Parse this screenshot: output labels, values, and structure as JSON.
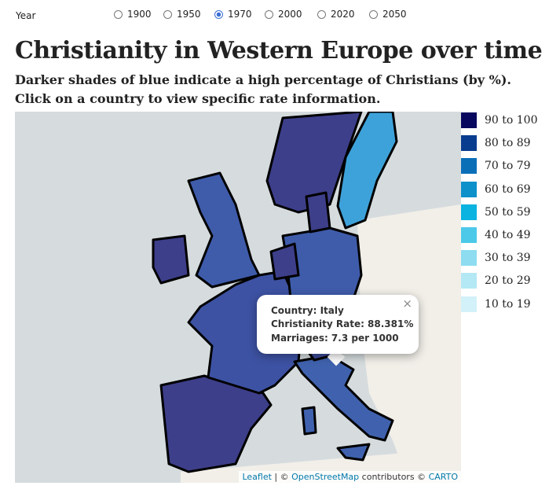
{
  "controls": {
    "label": "Year",
    "options": [
      "1900",
      "1950",
      "1970",
      "2000",
      "2020",
      "2050"
    ],
    "selected": 2
  },
  "header": {
    "title": "Christianity in Western Europe over time",
    "subtitle": [
      "Darker shades of blue indicate a high percentage of Christians (by %).",
      "Click on a country to view specific rate information."
    ]
  },
  "popup": {
    "close": "×",
    "lines": [
      "Country: Italy",
      "Christianity Rate: 88.381%",
      "Marriages: 7.3 per 1000"
    ]
  },
  "legend": {
    "items": [
      {
        "label": "90 to 100",
        "color": "#08085e"
      },
      {
        "label": "80 to 89",
        "color": "#083c8f"
      },
      {
        "label": "70 to 79",
        "color": "#0b6fb8"
      },
      {
        "label": "60 to 69",
        "color": "#0c91cb"
      },
      {
        "label": "50 to 59",
        "color": "#0ab3e0"
      },
      {
        "label": "40 to 49",
        "color": "#4cc9e8"
      },
      {
        "label": "30 to 39",
        "color": "#8ddcf0"
      },
      {
        "label": "20 to 29",
        "color": "#b4e8f5"
      },
      {
        "label": "10 to 19",
        "color": "#d2f1f9"
      }
    ]
  },
  "attribution": {
    "parts": [
      {
        "text": "Leaflet",
        "link": true
      },
      {
        "text": " | © ",
        "link": false
      },
      {
        "text": "OpenStreetMap",
        "link": true
      },
      {
        "text": " contributors © ",
        "link": false
      },
      {
        "text": "CARTO",
        "link": true
      }
    ]
  }
}
